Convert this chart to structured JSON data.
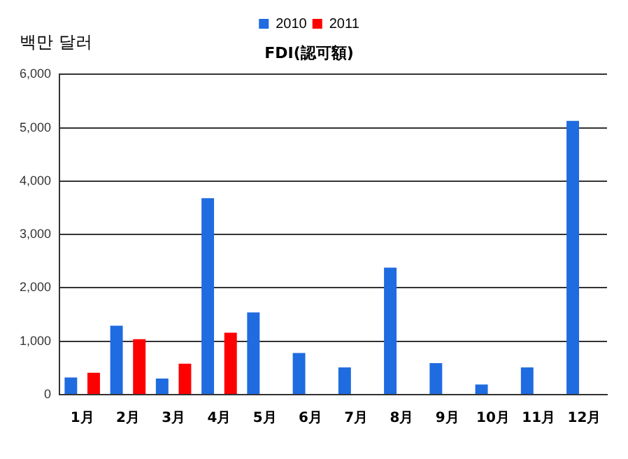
{
  "chart_data": {
    "type": "bar",
    "title": "FDI(認可額)",
    "ylabel": "백만 달러",
    "categories": [
      "1月",
      "2月",
      "3月",
      "4月",
      "5月",
      "6月",
      "7月",
      "8月",
      "9月",
      "10月",
      "11月",
      "12月"
    ],
    "series": [
      {
        "name": "2010",
        "color": "#1f6be0",
        "values": [
          320,
          1290,
          300,
          3680,
          1540,
          780,
          510,
          2380,
          590,
          190,
          510,
          5130
        ]
      },
      {
        "name": "2011",
        "color": "#ff0000",
        "values": [
          410,
          1040,
          580,
          1160,
          null,
          null,
          null,
          null,
          null,
          null,
          null,
          null
        ]
      }
    ],
    "ylim": [
      0,
      6000
    ],
    "yticks": [
      0,
      {
        "value": 1000,
        "label": "1,000"
      },
      {
        "value": 2000,
        "label": "2,000"
      },
      {
        "value": 3000,
        "label": "3,000"
      },
      {
        "value": 4000,
        "label": "4,000"
      },
      {
        "value": 5000,
        "label": "5,000"
      },
      {
        "value": 6000,
        "label": "6,000"
      }
    ],
    "grid": "y",
    "legend": "top"
  }
}
